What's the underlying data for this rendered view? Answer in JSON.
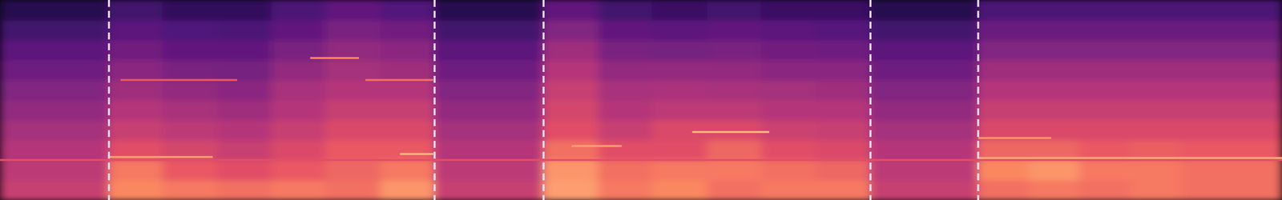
{
  "chart_data": {
    "type": "heatmap",
    "tick_labels": false,
    "xlim": [
      0,
      100
    ],
    "ylim": [
      0,
      100
    ],
    "zlim": [
      0,
      1
    ],
    "x_bins": [
      0,
      8.5,
      12.7,
      17.0,
      21.2,
      25.4,
      29.7,
      33.9,
      42.4,
      46.7,
      50.9,
      55.2,
      59.4,
      63.7,
      67.9,
      76.3,
      80.3,
      84.2,
      88.2,
      92.1,
      96.1,
      100
    ],
    "y_bins": [
      0,
      10,
      20,
      30,
      40,
      50,
      60,
      70,
      80,
      90,
      100
    ],
    "cells": [
      [
        0.55,
        0.75,
        0.72,
        0.7,
        0.72,
        0.7,
        0.78,
        0.55,
        0.8,
        0.72,
        0.75,
        0.7,
        0.72,
        0.72,
        0.55,
        0.7,
        0.72,
        0.7,
        0.72,
        0.7,
        0.7
      ],
      [
        0.52,
        0.72,
        0.65,
        0.62,
        0.65,
        0.68,
        0.72,
        0.52,
        0.78,
        0.7,
        0.72,
        0.72,
        0.7,
        0.68,
        0.52,
        0.75,
        0.78,
        0.72,
        0.72,
        0.7,
        0.7
      ],
      [
        0.5,
        0.62,
        0.58,
        0.55,
        0.6,
        0.65,
        0.65,
        0.5,
        0.7,
        0.62,
        0.62,
        0.68,
        0.62,
        0.6,
        0.5,
        0.68,
        0.68,
        0.65,
        0.66,
        0.65,
        0.65
      ],
      [
        0.46,
        0.55,
        0.52,
        0.5,
        0.55,
        0.6,
        0.6,
        0.46,
        0.62,
        0.55,
        0.6,
        0.6,
        0.56,
        0.55,
        0.46,
        0.6,
        0.6,
        0.6,
        0.6,
        0.6,
        0.6
      ],
      [
        0.42,
        0.5,
        0.47,
        0.45,
        0.5,
        0.55,
        0.55,
        0.42,
        0.58,
        0.5,
        0.52,
        0.52,
        0.5,
        0.5,
        0.42,
        0.55,
        0.55,
        0.55,
        0.55,
        0.55,
        0.55
      ],
      [
        0.38,
        0.45,
        0.42,
        0.4,
        0.47,
        0.5,
        0.5,
        0.38,
        0.55,
        0.47,
        0.48,
        0.47,
        0.46,
        0.45,
        0.38,
        0.5,
        0.5,
        0.5,
        0.5,
        0.5,
        0.5
      ],
      [
        0.33,
        0.4,
        0.36,
        0.35,
        0.42,
        0.46,
        0.45,
        0.33,
        0.5,
        0.42,
        0.42,
        0.42,
        0.4,
        0.4,
        0.33,
        0.45,
        0.45,
        0.45,
        0.45,
        0.45,
        0.45
      ],
      [
        0.28,
        0.34,
        0.3,
        0.3,
        0.36,
        0.42,
        0.4,
        0.28,
        0.45,
        0.36,
        0.35,
        0.36,
        0.34,
        0.33,
        0.28,
        0.38,
        0.38,
        0.38,
        0.38,
        0.38,
        0.38
      ],
      [
        0.22,
        0.28,
        0.25,
        0.24,
        0.3,
        0.36,
        0.34,
        0.22,
        0.38,
        0.3,
        0.28,
        0.3,
        0.28,
        0.27,
        0.22,
        0.32,
        0.32,
        0.32,
        0.32,
        0.32,
        0.32
      ],
      [
        0.15,
        0.22,
        0.18,
        0.18,
        0.24,
        0.3,
        0.26,
        0.15,
        0.3,
        0.22,
        0.2,
        0.22,
        0.2,
        0.2,
        0.15,
        0.24,
        0.24,
        0.24,
        0.24,
        0.24,
        0.24
      ]
    ],
    "tones": [
      {
        "x": [
          0,
          100
        ],
        "y": 20,
        "level": 0.62
      },
      {
        "x": [
          8.5,
          16.6
        ],
        "y": 21.5,
        "level": 0.8
      },
      {
        "x": [
          9.4,
          18.5
        ],
        "y": 60,
        "level": 0.65
      },
      {
        "x": [
          24.2,
          28
        ],
        "y": 71,
        "level": 0.75
      },
      {
        "x": [
          28.5,
          33.8
        ],
        "y": 60,
        "level": 0.7
      },
      {
        "x": [
          31.2,
          33.8
        ],
        "y": 23,
        "level": 0.85
      },
      {
        "x": [
          44.6,
          48.5
        ],
        "y": 27,
        "level": 0.8
      },
      {
        "x": [
          54,
          60
        ],
        "y": 34,
        "level": 0.85
      },
      {
        "x": [
          76.3,
          100
        ],
        "y": 21,
        "level": 0.82
      },
      {
        "x": [
          76.3,
          82
        ],
        "y": 31,
        "level": 0.78
      }
    ],
    "boundaries": [
      8.5,
      33.9,
      42.4,
      67.9,
      76.3
    ]
  }
}
